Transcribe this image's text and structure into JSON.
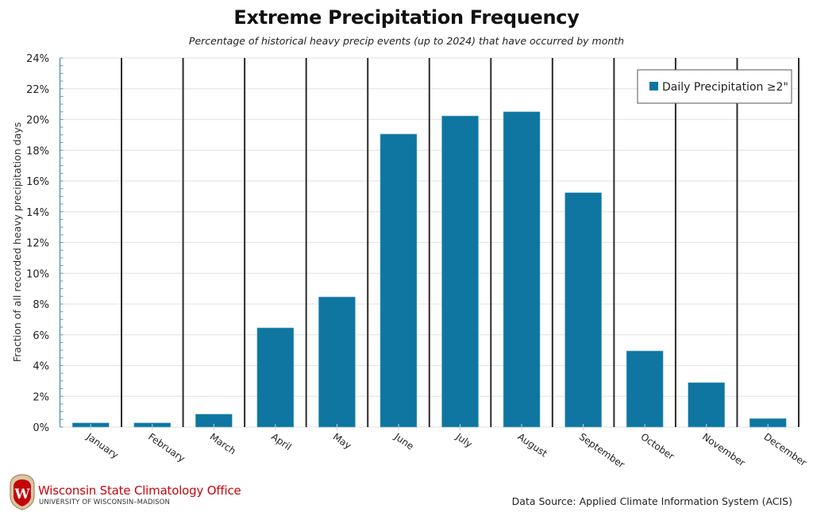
{
  "chart_data": {
    "type": "bar",
    "title": "Extreme Precipitation Frequency",
    "subtitle": "Percentage of historical heavy precip events (up to 2024) that have occurred by month",
    "xlabel": "",
    "ylabel": "Fraction of all recorded heavy precipitation days",
    "ylim": [
      0,
      24
    ],
    "yticks": [
      0,
      2,
      4,
      6,
      8,
      10,
      12,
      14,
      16,
      18,
      20,
      22,
      24
    ],
    "ytick_labels": [
      "0%",
      "2%",
      "4%",
      "6%",
      "8%",
      "10%",
      "12%",
      "14%",
      "16%",
      "18%",
      "20%",
      "22%",
      "24%"
    ],
    "grid": true,
    "legend_position": "top-right",
    "categories": [
      "January",
      "February",
      "March",
      "April",
      "May",
      "June",
      "July",
      "August",
      "September",
      "October",
      "November",
      "December"
    ],
    "series": [
      {
        "name": "Daily Precipitation ≥2\"",
        "color": "#0e76a0",
        "values": [
          0.27,
          0.27,
          0.84,
          6.45,
          8.46,
          19.05,
          20.23,
          20.5,
          15.24,
          4.95,
          2.89,
          0.55
        ]
      }
    ]
  },
  "colors": {
    "bar": "#0e76a0",
    "axis": "#5b9bbd",
    "separator": "#2b2b2b",
    "grid": "#e6e6e6",
    "brand_red": "#c5050c"
  },
  "footer": {
    "org_name": "Wisconsin State Climatology Office",
    "org_subtitle": "UNIVERSITY OF WISCONSIN–MADISON",
    "logo_letter": "W",
    "source": "Data Source: Applied Climate Information System (ACIS)"
  }
}
